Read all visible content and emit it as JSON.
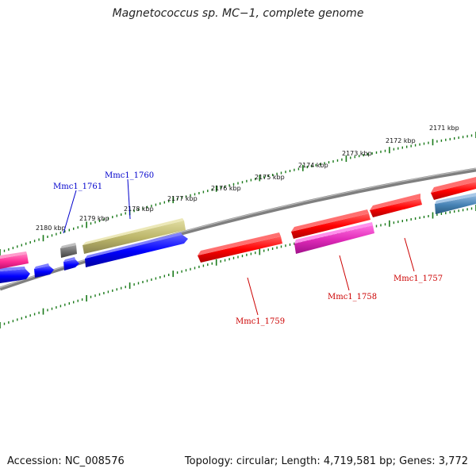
{
  "title": "Magnetococcus sp. MC−1, complete genome",
  "footer": {
    "accession": "Accession: NC_008576",
    "summary": "Topology: circular; Length: 4,719,581 bp; Genes: 3,772"
  },
  "scale_labels": [
    "2171 kbp",
    "2172 kbp",
    "2173 kbp",
    "2174 kbp",
    "2175 kbp",
    "2176 kbp",
    "2177 kbp",
    "2178 kbp",
    "2179 kbp",
    "2180 kbp"
  ],
  "gene_labels": [
    {
      "text": "Mmc1_1761",
      "color": "#0000cc"
    },
    {
      "text": "Mmc1_1760",
      "color": "#0000cc"
    },
    {
      "text": "Mmc1_1759",
      "color": "#cc0000"
    },
    {
      "text": "Mmc1_1758",
      "color": "#cc0000"
    },
    {
      "text": "Mmc1_1757",
      "color": "#cc0000"
    }
  ],
  "colors": {
    "backbone": "#7f7f7f",
    "ticks": "#1a7a1a",
    "red_gene": "#ff0000",
    "pink_gene": "#ff2d95",
    "magenta_gene": "#e02ab8",
    "blue_gene": "#0000ff",
    "khaki_gene": "#bdb76b",
    "grey_gene": "#6e6e6e",
    "steel_gene": "#4682b4"
  }
}
